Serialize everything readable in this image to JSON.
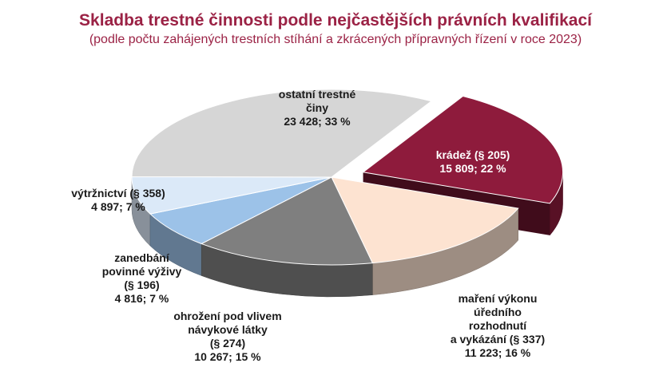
{
  "title": "Skladba trestné činnosti podle nejčastějších právních kvalifikací",
  "subtitle": "(podle počtu zahájených trestních stíhání a zkrácených přípravných řízení v roce 2023)",
  "chart_data": {
    "type": "pie",
    "title": "Skladba trestné činnosti podle nejčastějších právních kvalifikací",
    "subtitle": "(podle počtu zahájených trestních stíhání a zkrácených přípravných řízení v roce 2023)",
    "slices": [
      {
        "name": "krádež (§ 205)",
        "label_lines": [
          "krádež (§ 205)",
          "15 809; 22 %"
        ],
        "value": 15809,
        "percent": 22,
        "color": "#8e1b3c",
        "exploded": true
      },
      {
        "name": "maření výkonu úředního rozhodnutí a vykázání (§ 337)",
        "label_lines": [
          "maření výkonu",
          "úředního",
          "rozhodnutí",
          "a vykázání (§ 337)",
          "11 223; 16 %"
        ],
        "value": 11223,
        "percent": 16,
        "color": "#fde3d1",
        "exploded": false
      },
      {
        "name": "ohrožení pod vlivem návykové látky (§ 274)",
        "label_lines": [
          "ohrožení pod vlivem",
          "návykové látky",
          "(§ 274)",
          "10 267; 15 %"
        ],
        "value": 10267,
        "percent": 15,
        "color": "#7f7f7f",
        "exploded": false
      },
      {
        "name": "zanedbání povinné výživy (§ 196)",
        "label_lines": [
          "zanedbání",
          "povinné výživy",
          "(§ 196)",
          "4 816; 7 %"
        ],
        "value": 4816,
        "percent": 7,
        "color": "#9cc2e8",
        "exploded": false
      },
      {
        "name": "výtržnictví (§ 358)",
        "label_lines": [
          "výtržnictví (§ 358)",
          "4 897; 7 %"
        ],
        "value": 4897,
        "percent": 7,
        "color": "#dbe9f8",
        "exploded": false
      },
      {
        "name": "ostatní trestné činy",
        "label_lines": [
          "ostatní trestné",
          "činy",
          "23 428; 33 %"
        ],
        "value": 23428,
        "percent": 33,
        "color": "#d6d6d6",
        "exploded": false
      }
    ]
  }
}
